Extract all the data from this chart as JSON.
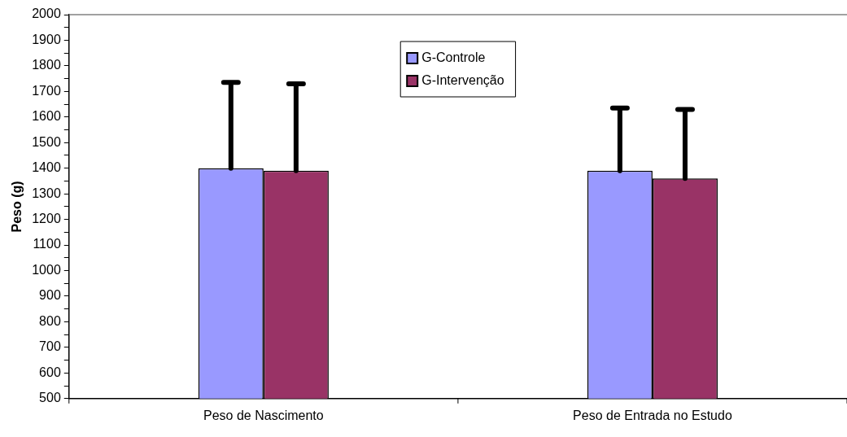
{
  "chart_data": {
    "type": "bar",
    "ylabel": "Peso (g)",
    "categories": [
      "Peso de Nascimento",
      "Peso de Entrada no Estudo"
    ],
    "series": [
      {
        "name": "G-Controle",
        "color": "#9999ff",
        "values": [
          1400,
          1390
        ],
        "errors": [
          [
            1400,
            1735
          ],
          [
            1390,
            1635
          ]
        ]
      },
      {
        "name": "G-Intervenção",
        "color": "#993366",
        "values": [
          1390,
          1360
        ],
        "errors": [
          [
            1390,
            1730
          ],
          [
            1360,
            1630
          ]
        ]
      }
    ],
    "ylim": [
      500,
      2000
    ],
    "yticks": [
      500,
      {
        "value": 550,
        "label": null
      },
      600,
      {
        "value": 650,
        "label": null
      },
      700,
      {
        "value": 750,
        "label": null
      },
      800,
      {
        "value": 850,
        "label": null
      },
      900,
      {
        "value": 950,
        "label": null
      },
      1000,
      {
        "value": 1050,
        "label": null
      },
      1100,
      {
        "value": 1150,
        "label": null
      },
      1200,
      {
        "value": 1250,
        "label": null
      },
      1300,
      {
        "value": 1350,
        "label": null
      },
      1400,
      {
        "value": 1450,
        "label": null
      },
      1500,
      {
        "value": 1550,
        "label": null
      },
      1600,
      {
        "value": 1650,
        "label": null
      },
      1700,
      {
        "value": 1750,
        "label": null
      },
      1800,
      {
        "value": 1850,
        "label": null
      },
      1900,
      {
        "value": 1950,
        "label": null
      },
      2000
    ],
    "grid": false,
    "legend": "top"
  }
}
